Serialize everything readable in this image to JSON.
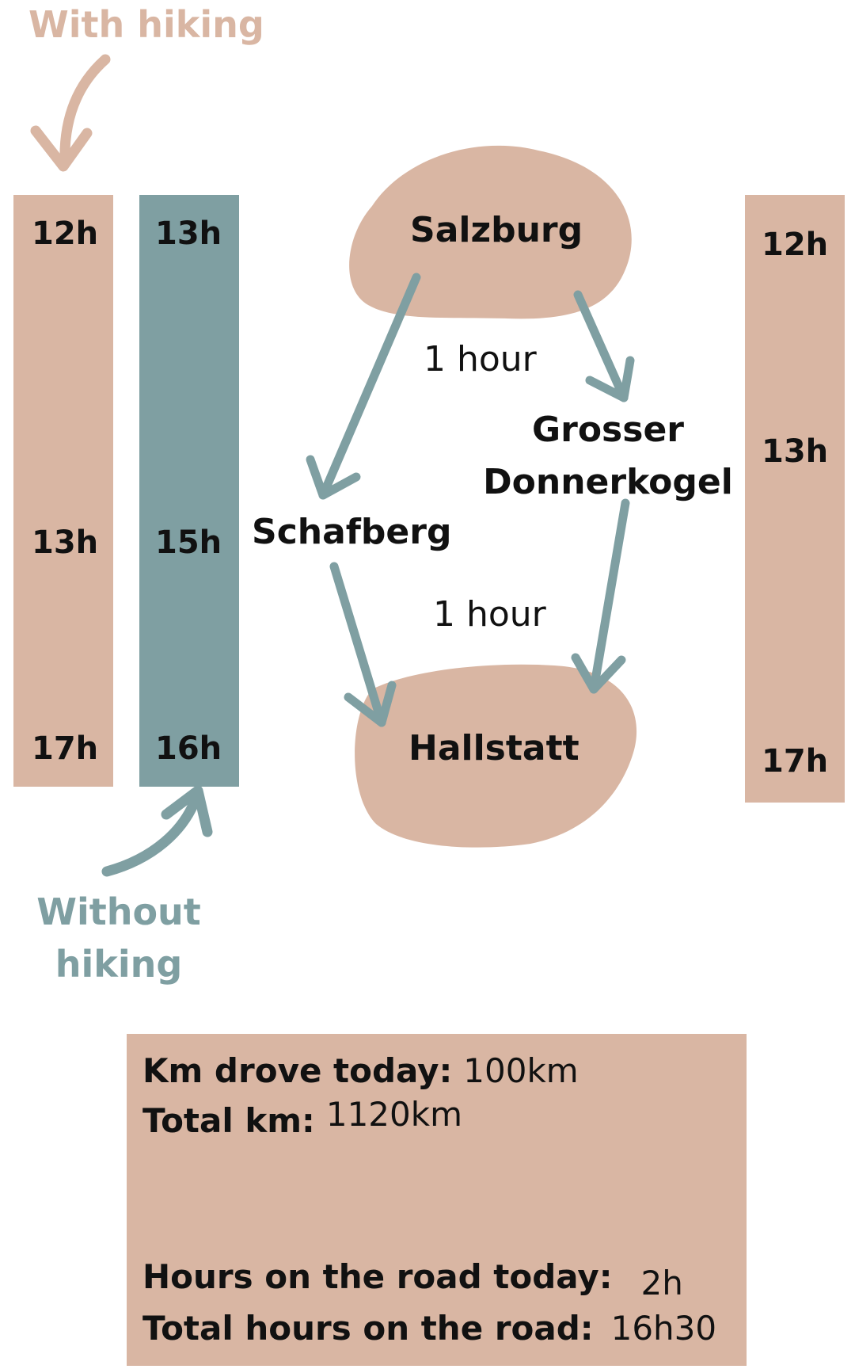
{
  "labels": {
    "with_hiking": "With hiking",
    "without_hiking_line1": "Without",
    "without_hiking_line2": "hiking"
  },
  "bar_with_hiking": {
    "times": [
      "12h",
      "13h",
      "17h"
    ]
  },
  "bar_without_hiking": {
    "times": [
      "13h",
      "15h",
      "16h"
    ]
  },
  "bar_right": {
    "times": [
      "12h",
      "13h",
      "17h"
    ]
  },
  "places": {
    "start": "Salzburg",
    "via_left": "Schafberg",
    "via_right_line1": "Grosser",
    "via_right_line2": "Donnerkogel",
    "end": "Hallstatt"
  },
  "durations": {
    "first": "1 hour",
    "second": "1 hour"
  },
  "summary": {
    "km_today_label": "Km drove today:",
    "km_today_value": "100km",
    "km_total_label": "Total km:",
    "km_total_value": "1120km",
    "hours_today_label": "Hours on the road today:",
    "hours_today_value": "2h",
    "hours_total_label": "Total hours on the road:",
    "hours_total_value": "16h30"
  },
  "colors": {
    "tan": "#d9b6a3",
    "teal": "#7f9fa2",
    "text": "#111111"
  }
}
